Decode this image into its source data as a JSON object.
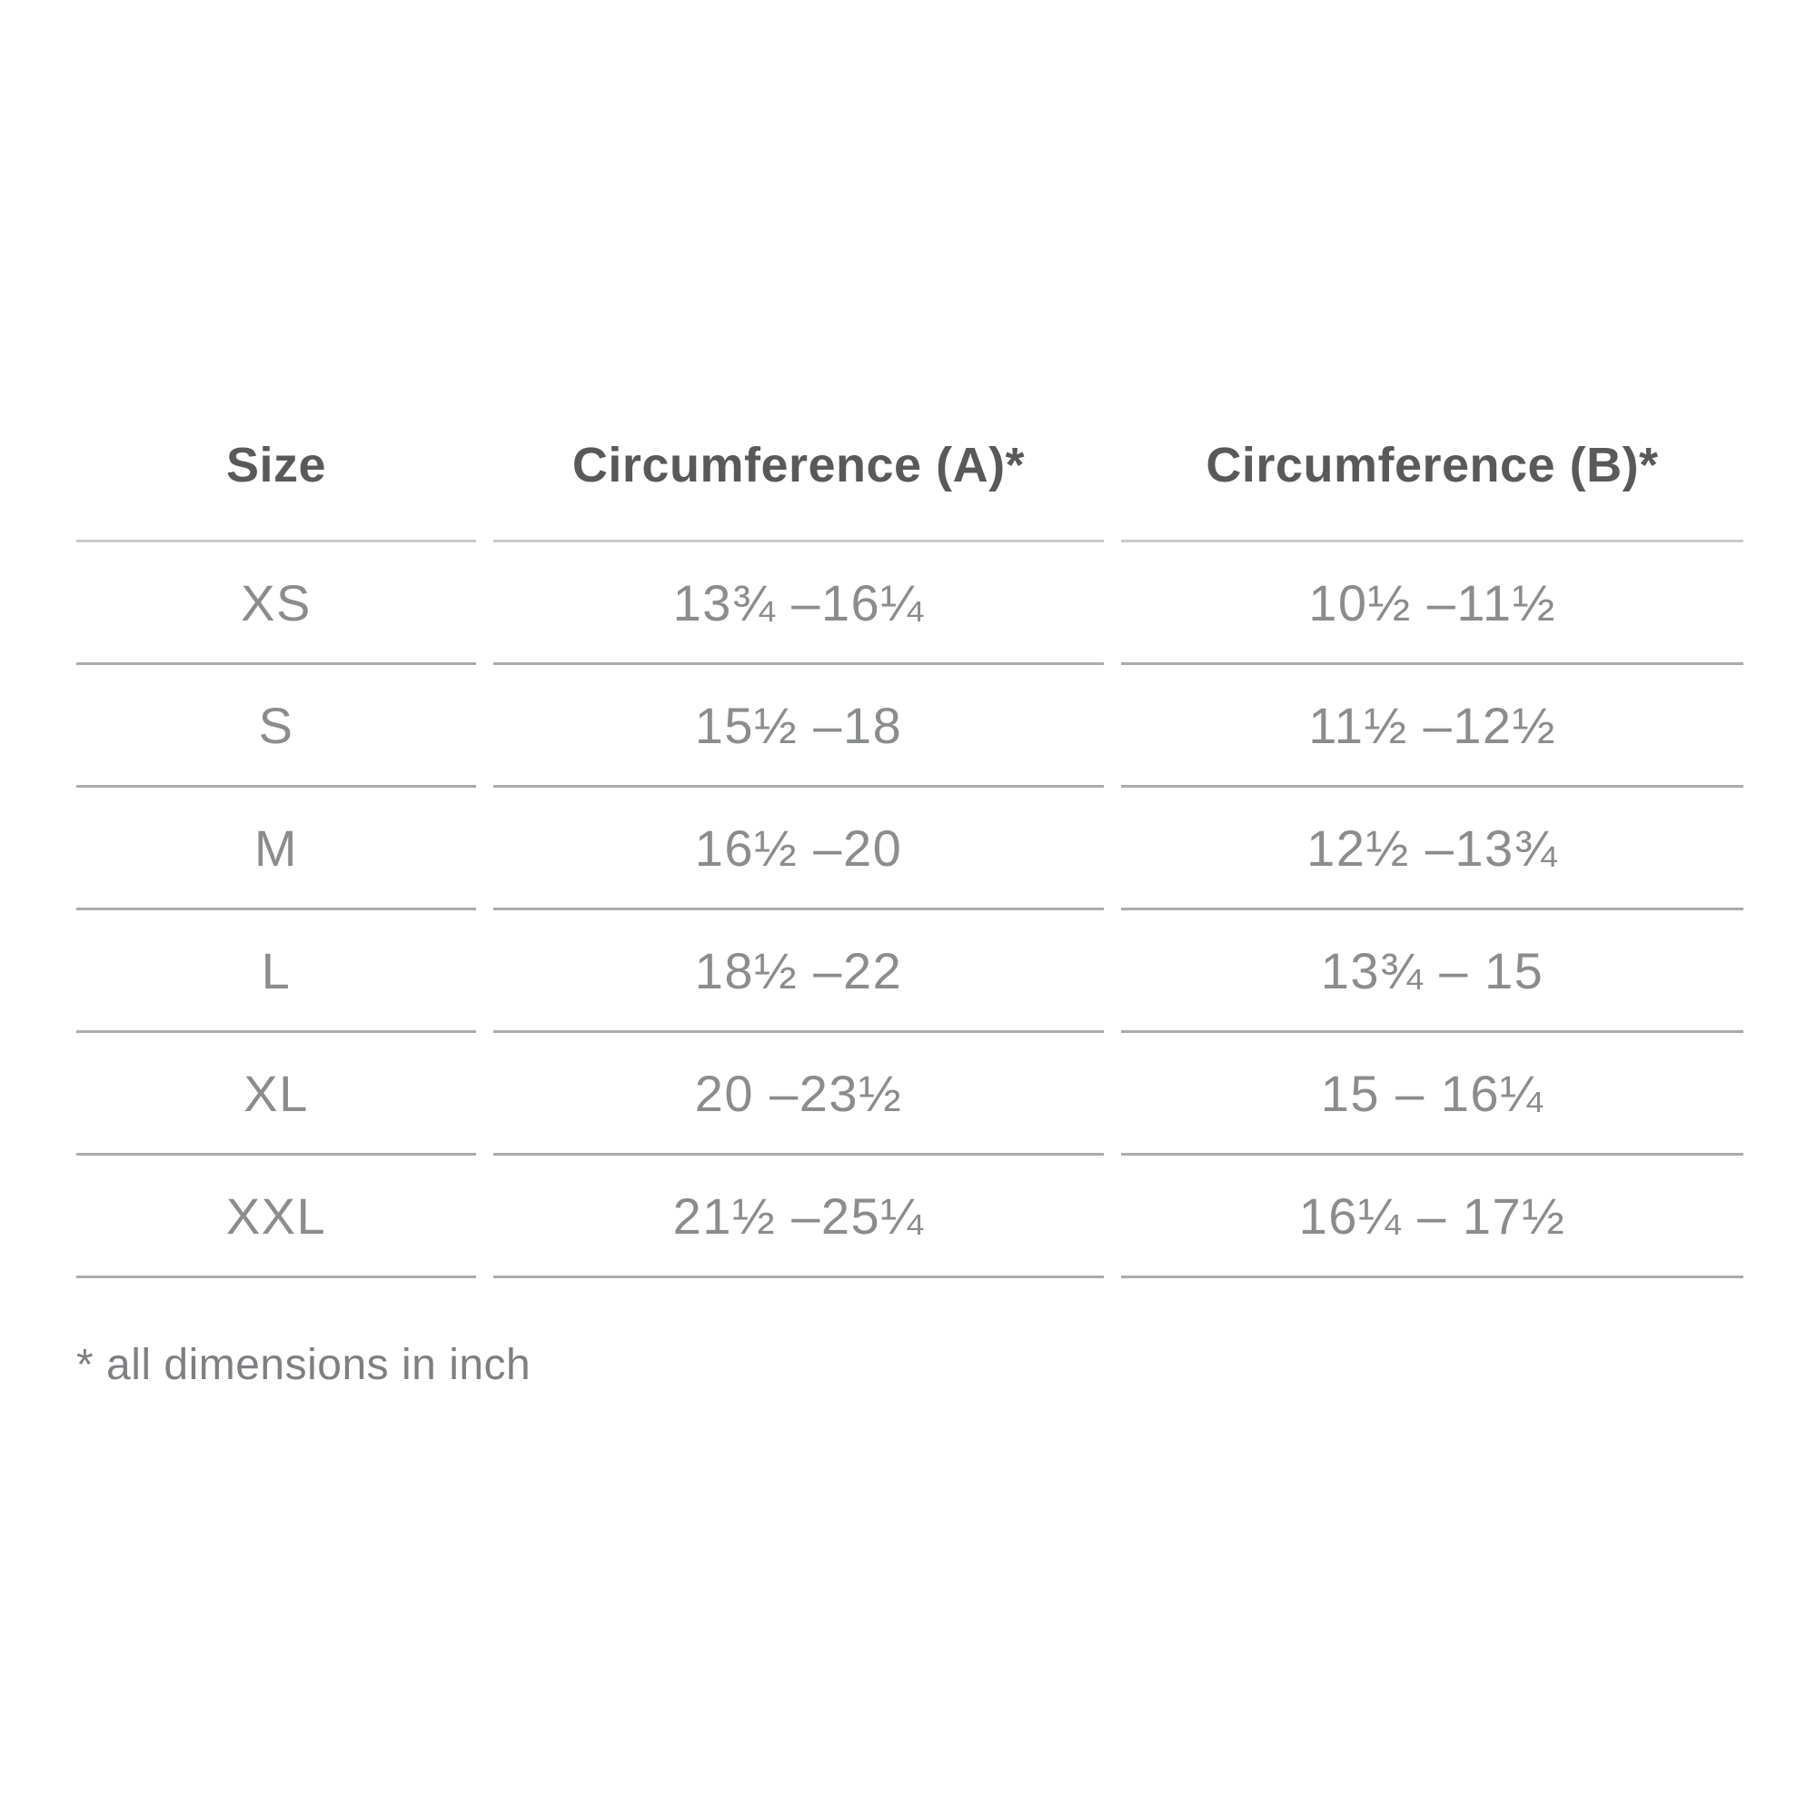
{
  "chart_data": {
    "type": "table",
    "title": "",
    "columns": [
      "Size",
      "Circumference (A)*",
      "Circumference (B)*"
    ],
    "rows": [
      {
        "size": "XS",
        "circumference_a": "13¾ –16¼",
        "circumference_b": "10½ –11½"
      },
      {
        "size": "S",
        "circumference_a": "15½ –18",
        "circumference_b": "11½ –12½"
      },
      {
        "size": "M",
        "circumference_a": "16½ –20",
        "circumference_b": "12½ –13¾"
      },
      {
        "size": "L",
        "circumference_a": "18½ –22",
        "circumference_b": "13¾ – 15"
      },
      {
        "size": "XL",
        "circumference_a": "20 –23½",
        "circumference_b": "15 – 16¼"
      },
      {
        "size": "XXL",
        "circumference_a": "21½ –25¼",
        "circumference_b": "16¼ – 17½"
      }
    ],
    "footnote": "* all dimensions in inch",
    "units": "inch"
  },
  "colors": {
    "background": "#ffffff",
    "header_text": "#58595b",
    "data_text": "#8a8c8e",
    "header_rule": "#c9cbcd",
    "row_rule": "#a9abad"
  }
}
